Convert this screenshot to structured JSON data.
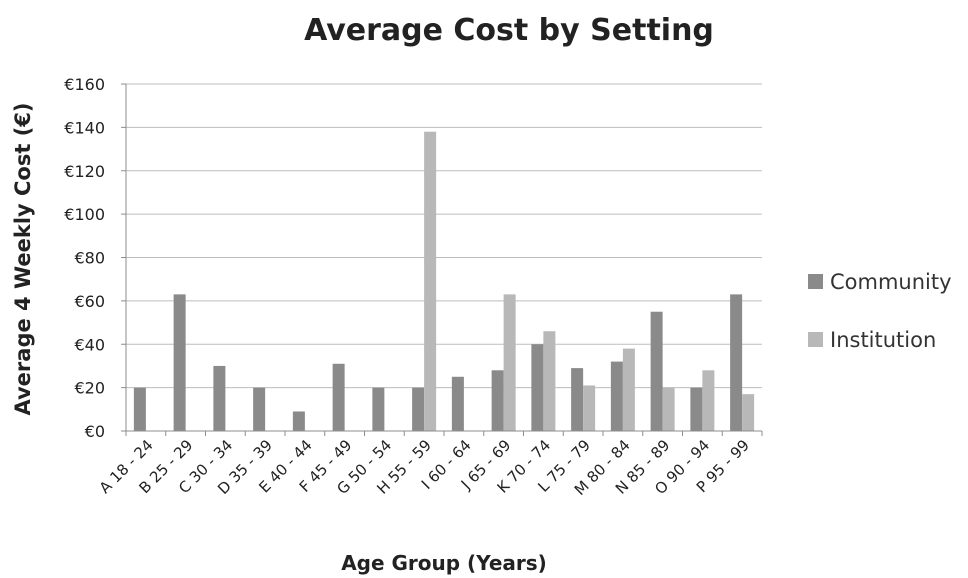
{
  "chart_data": {
    "type": "bar",
    "title": "Average Cost by Setting",
    "xlabel": "Age Group (Years)",
    "ylabel": "Average 4 Weekly Cost (€)",
    "ylim": [
      0,
      160
    ],
    "yticks": [
      "€0",
      "€20",
      "€40",
      "€60",
      "€80",
      "€100",
      "€120",
      "€140",
      "€160"
    ],
    "grid": true,
    "legend_position": "right",
    "categories": [
      "A 18 - 24",
      "B 25 - 29",
      "C 30 - 34",
      "D 35 - 39",
      "E 40 - 44",
      "F 45 - 49",
      "G 50 - 54",
      "H 55 - 59",
      "I 60 - 64",
      "J 65 - 69",
      "K 70 - 74",
      "L 75 - 79",
      "M 80 - 84",
      "N 85 - 89",
      "O 90 - 94",
      "P 95 - 99"
    ],
    "series": [
      {
        "name": "Community",
        "color": "#8a8a8a",
        "values": [
          20,
          63,
          30,
          20,
          9,
          31,
          20,
          20,
          25,
          28,
          40,
          29,
          32,
          55,
          20,
          63
        ]
      },
      {
        "name": "Institution",
        "color": "#b8b8b8",
        "values": [
          null,
          null,
          null,
          null,
          null,
          null,
          null,
          138,
          null,
          63,
          46,
          21,
          38,
          20,
          28,
          17
        ]
      }
    ]
  }
}
